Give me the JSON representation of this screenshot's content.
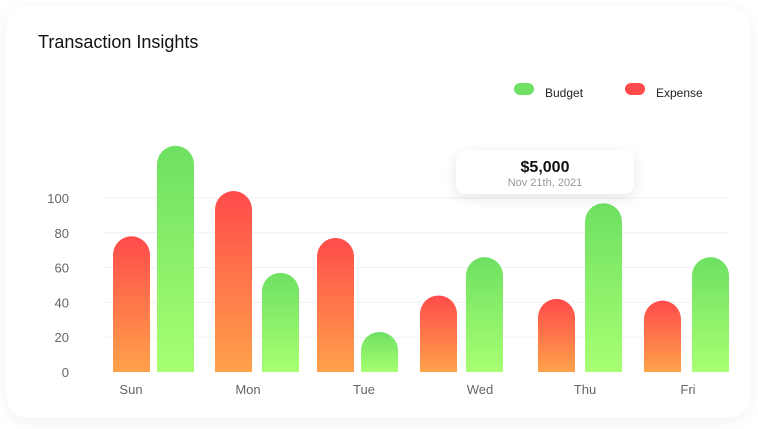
{
  "colors": {
    "budget_top": "#6EE062",
    "budget_bottom": "#A8FF72",
    "expense_top": "#FF4B4B",
    "expense_bottom": "#FFA24A",
    "grid": "#EEF0F3"
  },
  "tooltip": {
    "value": "$5,000",
    "date": "Nov 21th, 2021"
  },
  "chart_data": {
    "type": "bar",
    "title": "Transaction Insights",
    "categories": [
      "Sun",
      "Mon",
      "Tue",
      "Wed",
      "Thu",
      "Fri"
    ],
    "series": [
      {
        "name": "Expense",
        "values": [
          78,
          104,
          77,
          44,
          42,
          41
        ]
      },
      {
        "name": "Budget",
        "values": [
          130,
          57,
          23,
          66,
          97,
          66
        ]
      }
    ],
    "yticks": [
      0,
      20,
      40,
      60,
      80,
      100
    ],
    "ylim": [
      0,
      130
    ],
    "grid": true,
    "legend": "top-right"
  }
}
